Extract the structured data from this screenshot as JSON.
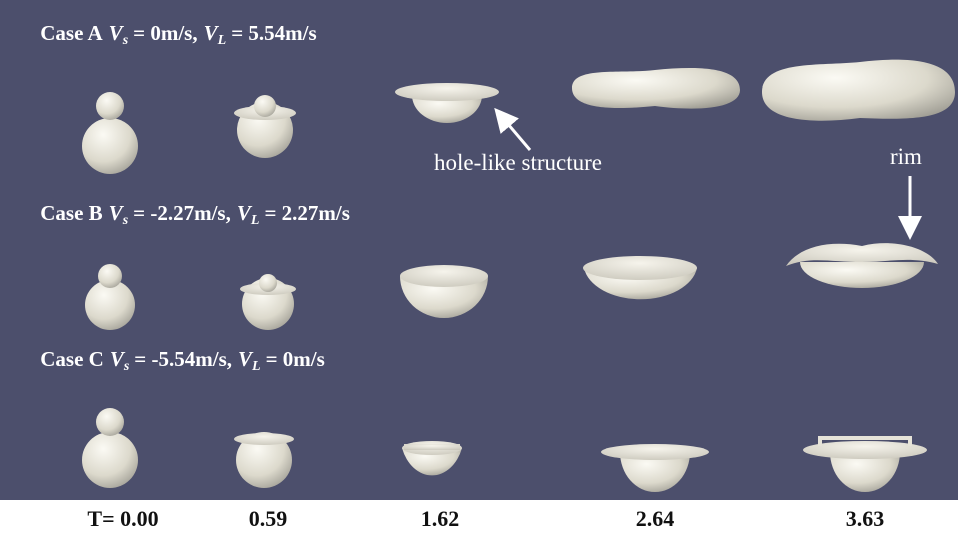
{
  "cases": [
    {
      "label": "Case A",
      "vs_symbol": "V",
      "vs_sub": "s",
      "vs_value": "= 0m/s,",
      "vl_symbol": "V",
      "vl_sub": "L",
      "vl_value": "= 5.54m/s"
    },
    {
      "label": "Case B",
      "vs_symbol": "V",
      "vs_sub": "s",
      "vs_value": "= -2.27m/s,",
      "vl_symbol": "V",
      "vl_sub": "L",
      "vl_value": "= 2.27m/s"
    },
    {
      "label": "Case C",
      "vs_symbol": "V",
      "vs_sub": "s",
      "vs_value": "= -5.54m/s,",
      "vl_symbol": "V",
      "vl_sub": "L",
      "vl_value": "= 0m/s"
    }
  ],
  "annotations": {
    "hole": "hole-like structure",
    "rim": "rim"
  },
  "times": [
    "T= 0.00",
    "0.59",
    "1.62",
    "2.64",
    "3.63"
  ]
}
